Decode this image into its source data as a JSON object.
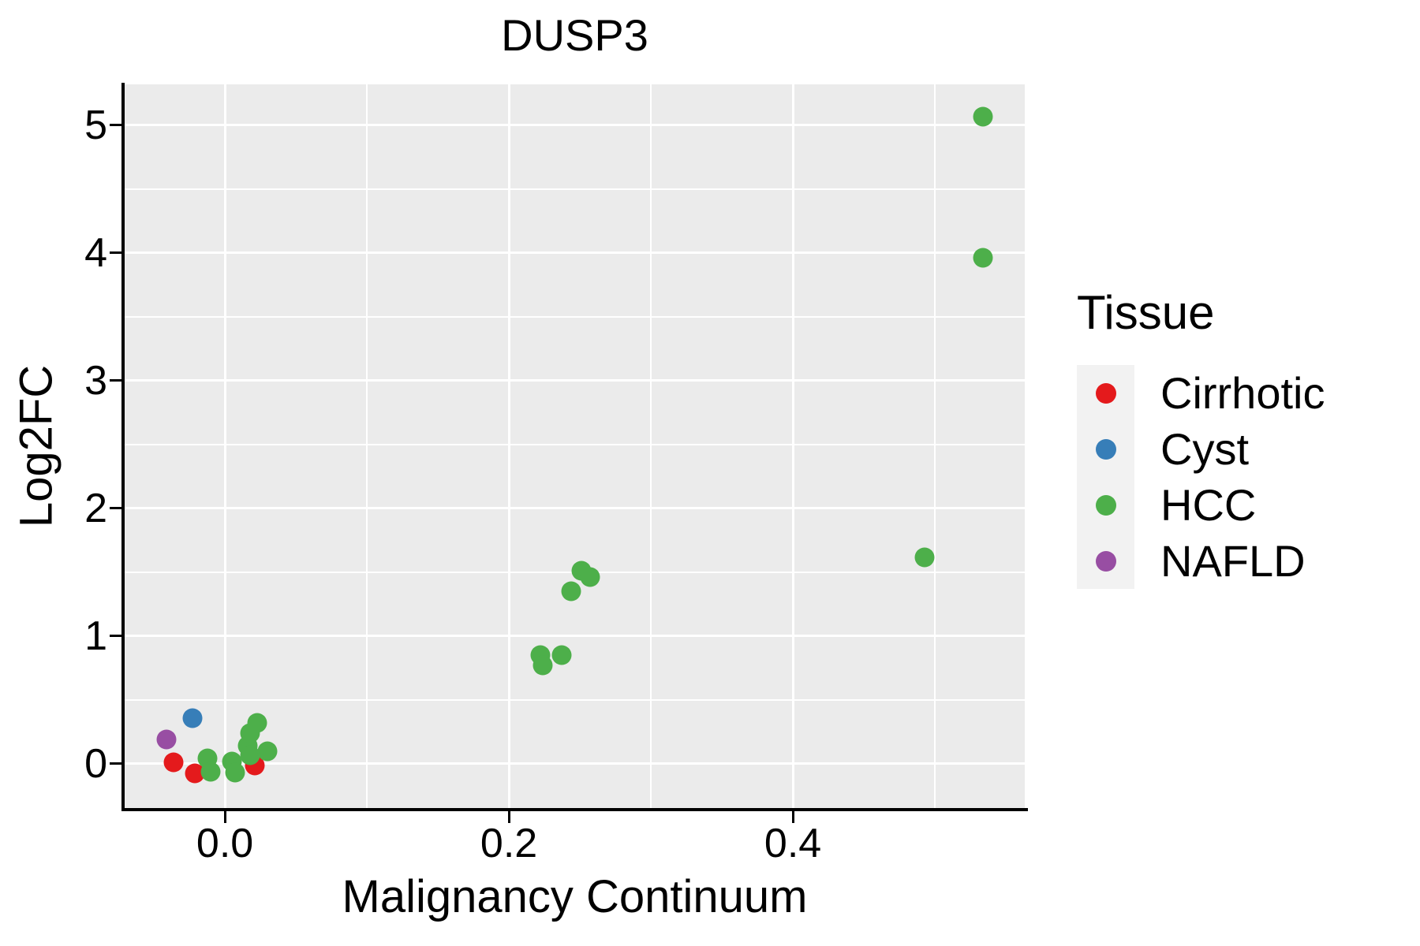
{
  "title": "DUSP3",
  "colors": {
    "background": "#FFFFFF",
    "panel": "#EBEBEB",
    "grid": "#FFFFFF",
    "axis": "#000000",
    "legend_key": "#F2F2F2",
    "cirrhotic": "#E41A1C",
    "cyst": "#377EB8",
    "hcc": "#4DAF4A",
    "nafld": "#984EA3"
  },
  "legend": {
    "title": "Tissue",
    "items": [
      {
        "label": "Cirrhotic",
        "color": "#E41A1C"
      },
      {
        "label": "Cyst",
        "color": "#377EB8"
      },
      {
        "label": "HCC",
        "color": "#4DAF4A"
      },
      {
        "label": "NAFLD",
        "color": "#984EA3"
      }
    ]
  },
  "chart_data": {
    "type": "scatter",
    "title": "DUSP3",
    "xlabel": "Malignancy Continuum",
    "ylabel": "Log2FC",
    "xlim": [
      -0.0706,
      0.5633
    ],
    "ylim": [
      -0.346,
      5.321
    ],
    "x_ticks": {
      "values": [
        0.0,
        0.2,
        0.4
      ],
      "labels": [
        "0.0",
        "0.2",
        "0.4"
      ],
      "minor": [
        0.1,
        0.3,
        0.5
      ]
    },
    "y_ticks": {
      "values": [
        0,
        1,
        2,
        3,
        4,
        5
      ],
      "labels": [
        "0",
        "1",
        "2",
        "3",
        "4",
        "5"
      ],
      "minor": [
        0.5,
        1.5,
        2.5,
        3.5,
        4.5
      ]
    },
    "grid": {
      "major": true,
      "minor": true
    },
    "legend_position": "right",
    "series": [
      {
        "name": "Cirrhotic",
        "color": "#E41A1C",
        "points": [
          [
            -0.036,
            0.012
          ],
          [
            -0.021,
            -0.074
          ],
          [
            0.021,
            -0.012
          ]
        ]
      },
      {
        "name": "Cyst",
        "color": "#377EB8",
        "points": [
          [
            -0.023,
            0.36
          ]
        ]
      },
      {
        "name": "NAFLD",
        "color": "#984EA3",
        "points": [
          [
            -0.041,
            0.19
          ]
        ]
      },
      {
        "name": "HCC",
        "color": "#4DAF4A",
        "points": [
          [
            -0.012,
            0.04
          ],
          [
            -0.01,
            -0.06
          ],
          [
            0.005,
            0.02
          ],
          [
            0.007,
            -0.07
          ],
          [
            0.016,
            0.14
          ],
          [
            0.018,
            0.24
          ],
          [
            0.018,
            0.07
          ],
          [
            0.023,
            0.32
          ],
          [
            0.03,
            0.1
          ],
          [
            0.222,
            0.85
          ],
          [
            0.224,
            0.77
          ],
          [
            0.237,
            0.85
          ],
          [
            0.244,
            1.35
          ],
          [
            0.251,
            1.51
          ],
          [
            0.257,
            1.46
          ],
          [
            0.493,
            1.62
          ],
          [
            0.534,
            3.96
          ],
          [
            0.534,
            5.07
          ]
        ]
      }
    ]
  }
}
